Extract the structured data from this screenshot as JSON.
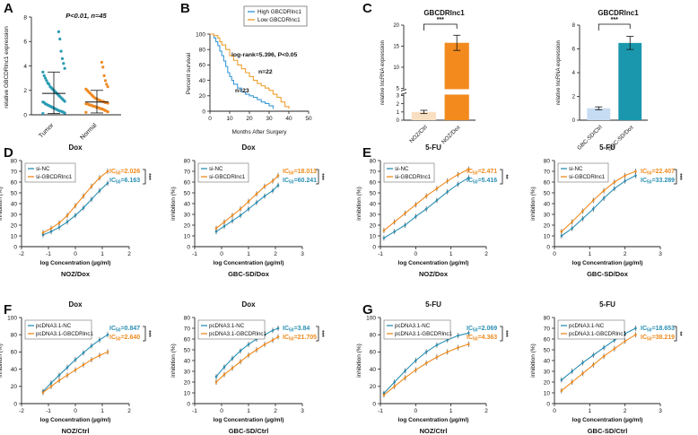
{
  "figure": {
    "panel_letters": [
      "A",
      "B",
      "C",
      "D",
      "E",
      "F",
      "G"
    ],
    "colors": {
      "tumor": "#2a9bb3",
      "normal": "#f08a24",
      "km_high": "#3a9ad9",
      "km_low": "#f0a030",
      "bar_ctrl": "#f8dfc2",
      "bar_dox": "#f28a1e",
      "bar_ctrl2": "#c6dcf2",
      "bar_dox2": "#1a97ad",
      "teal": "#2a8fb3",
      "orange": "#ee8a1c",
      "axis": "#222222"
    }
  },
  "chart_data": [
    {
      "id": "A",
      "type": "scatter",
      "title": "P<0.01, n=45",
      "ylabel": "relative GBCDRlnc1 expression",
      "categories": [
        "Tumor",
        "Normal"
      ],
      "ylim": [
        0,
        8
      ],
      "yticks": [
        0,
        2,
        4,
        6,
        8
      ],
      "series": [
        {
          "name": "Tumor",
          "values": [
            0.1,
            0.15,
            0.2,
            0.25,
            0.3,
            0.3,
            0.35,
            0.4,
            0.45,
            0.5,
            0.55,
            0.6,
            0.65,
            0.7,
            0.75,
            0.8,
            0.85,
            0.9,
            1.0,
            1.05,
            1.1,
            1.2,
            1.3,
            1.4,
            1.5,
            1.6,
            1.7,
            1.8,
            1.9,
            2.0,
            2.1,
            2.2,
            2.3,
            2.5,
            2.6,
            2.8,
            3.0,
            3.2,
            3.5,
            3.8,
            4.2,
            4.6,
            5.2,
            6.2,
            6.8
          ],
          "mean": 1.75,
          "sd_low": 0.1,
          "sd_high": 3.5
        },
        {
          "name": "Normal",
          "values": [
            0.2,
            0.25,
            0.3,
            0.35,
            0.4,
            0.45,
            0.5,
            0.5,
            0.55,
            0.6,
            0.6,
            0.65,
            0.7,
            0.7,
            0.75,
            0.8,
            0.8,
            0.85,
            0.9,
            0.9,
            0.95,
            1.0,
            1.0,
            1.05,
            1.1,
            1.1,
            1.15,
            1.2,
            1.25,
            1.3,
            1.35,
            1.4,
            1.5,
            1.6,
            1.7,
            1.8,
            1.9,
            2.0,
            2.1,
            2.3,
            2.5,
            2.8,
            3.2,
            3.9,
            4.3
          ],
          "mean": 1.05,
          "sd_low": 0.15,
          "sd_high": 2.0
        }
      ]
    },
    {
      "id": "B",
      "type": "line",
      "xlabel": "Months After Surgery",
      "ylabel": "Percent survival",
      "xlim": [
        0,
        50
      ],
      "ylim": [
        0,
        100
      ],
      "xticks": [
        0,
        10,
        20,
        30,
        40,
        50
      ],
      "yticks": [
        0,
        20,
        40,
        60,
        80,
        100
      ],
      "annotation": "log-rank=5.396, P<0.05",
      "n_labels": [
        "n=22",
        "n=23"
      ],
      "series": [
        {
          "name": "High GBCDRlnc1",
          "x": [
            0,
            2,
            3,
            4,
            5,
            6,
            7,
            8,
            9,
            10,
            11,
            12,
            14,
            16,
            18,
            20,
            22,
            24,
            26,
            28,
            30,
            32
          ],
          "y": [
            100,
            95,
            90,
            85,
            78,
            72,
            65,
            58,
            50,
            45,
            40,
            35,
            30,
            25,
            22,
            20,
            18,
            15,
            12,
            10,
            7,
            3
          ]
        },
        {
          "name": "Low GBCDRlnc1",
          "x": [
            0,
            2,
            4,
            5,
            6,
            8,
            10,
            12,
            14,
            16,
            18,
            20,
            22,
            24,
            26,
            28,
            30,
            32,
            34,
            36,
            38,
            40
          ],
          "y": [
            100,
            98,
            95,
            90,
            86,
            80,
            72,
            66,
            60,
            55,
            50,
            45,
            40,
            36,
            33,
            30,
            27,
            22,
            18,
            12,
            6,
            3
          ]
        }
      ]
    },
    {
      "id": "C1",
      "type": "bar",
      "title": "GBCDRlnc1",
      "ylabel": "relative lncRNA expression",
      "categories": [
        "NOZ/Ctrl",
        "NOZ/Dox"
      ],
      "values": [
        1.0,
        15.8
      ],
      "errors": [
        0.2,
        1.8
      ],
      "ylim": [
        0,
        20
      ],
      "yticks": [
        0,
        1,
        2,
        3,
        5,
        10,
        15,
        20
      ],
      "axis_break": [
        3.3,
        4.8
      ],
      "significance": "***"
    },
    {
      "id": "C2",
      "type": "bar",
      "title": "GBCDRlnc1",
      "ylabel": "relative lncRNA expression",
      "categories": [
        "GBC-SD/Ctrl",
        "GBC-SD/Dox"
      ],
      "values": [
        1.0,
        6.5
      ],
      "errors": [
        0.12,
        0.55
      ],
      "ylim": [
        0,
        8
      ],
      "yticks": [
        0,
        2,
        4,
        6,
        8
      ],
      "significance": "***"
    },
    {
      "id": "D1",
      "type": "line",
      "title": "Dox",
      "cell_line": "NOZ/Dox",
      "xlabel": "log Concentration (µg/ml)",
      "ylabel": "inhibition (%)",
      "xlim": [
        -2,
        2
      ],
      "ylim": [
        0,
        80
      ],
      "xticks": [
        -2,
        -1,
        0,
        1,
        2
      ],
      "yticks": [
        0,
        10,
        20,
        30,
        40,
        50,
        60,
        70,
        80
      ],
      "significance": "***",
      "series": [
        {
          "name": "si-NC",
          "color_key": "teal",
          "ic50": "IC50=6.163",
          "x": [
            -1.2,
            -0.9,
            -0.6,
            -0.3,
            0,
            0.3,
            0.6,
            0.9,
            1.2
          ],
          "y": [
            11,
            14,
            18,
            23,
            29,
            36,
            44,
            52,
            59
          ]
        },
        {
          "name": "si-GBCDRlnc1",
          "color_key": "orange",
          "ic50": "IC50=2.026",
          "x": [
            -1.2,
            -0.9,
            -0.6,
            -0.3,
            0,
            0.3,
            0.6,
            0.9,
            1.2
          ],
          "y": [
            13,
            17,
            22,
            29,
            38,
            47,
            56,
            64,
            70
          ]
        }
      ]
    },
    {
      "id": "D2",
      "type": "line",
      "title": "Dox",
      "cell_line": "GBC-SD/Dox",
      "xlabel": "log Concentration (µg/ml)",
      "ylabel": "inhibition (%)",
      "xlim": [
        -1,
        3
      ],
      "ylim": [
        0,
        80
      ],
      "xticks": [
        -1,
        0,
        1,
        2,
        3
      ],
      "yticks": [
        0,
        10,
        20,
        30,
        40,
        50,
        60,
        70,
        80
      ],
      "significance": "***",
      "series": [
        {
          "name": "si-NC",
          "color_key": "teal",
          "ic50": "IC50=60.241",
          "x": [
            -0.2,
            0.1,
            0.4,
            0.7,
            1.0,
            1.3,
            1.6,
            1.9,
            2.1
          ],
          "y": [
            14,
            19,
            24,
            29,
            35,
            41,
            47,
            52,
            57
          ]
        },
        {
          "name": "si-GBCDRlnc1",
          "color_key": "orange",
          "ic50": "IC50=18.013",
          "x": [
            -0.2,
            0.1,
            0.4,
            0.7,
            1.0,
            1.3,
            1.6,
            1.9,
            2.1
          ],
          "y": [
            17,
            23,
            29,
            35,
            42,
            49,
            56,
            61,
            66
          ]
        }
      ]
    },
    {
      "id": "E1",
      "type": "line",
      "title": "5-FU",
      "cell_line": "NOZ/Dox",
      "xlabel": "log Concentration (µg/ml)",
      "ylabel": "inhibition (%)",
      "xlim": [
        -1,
        2
      ],
      "ylim": [
        0,
        80
      ],
      "xticks": [
        -1,
        0,
        1,
        2
      ],
      "yticks": [
        0,
        10,
        20,
        30,
        40,
        50,
        60,
        70,
        80
      ],
      "significance": "**",
      "series": [
        {
          "name": "si-NC",
          "color_key": "teal",
          "ic50": "IC50=5.416",
          "x": [
            -0.9,
            -0.6,
            -0.3,
            0,
            0.3,
            0.6,
            0.9,
            1.2,
            1.5
          ],
          "y": [
            8,
            14,
            20,
            28,
            35,
            43,
            51,
            58,
            64
          ]
        },
        {
          "name": "si-GBCDRlnc1",
          "color_key": "orange",
          "ic50": "IC50=2.471",
          "x": [
            -0.9,
            -0.6,
            -0.3,
            0,
            0.3,
            0.6,
            0.9,
            1.2,
            1.5
          ],
          "y": [
            15,
            23,
            31,
            39,
            47,
            54,
            61,
            67,
            72
          ]
        }
      ]
    },
    {
      "id": "E2",
      "type": "line",
      "title": "5-FU",
      "cell_line": "GBC-SD/Dox",
      "xlabel": "log Concentration (µg/ml)",
      "ylabel": "inhibition (%)",
      "xlim": [
        0,
        3
      ],
      "ylim": [
        0,
        80
      ],
      "xticks": [
        0,
        1,
        2,
        3
      ],
      "yticks": [
        0,
        10,
        20,
        30,
        40,
        50,
        60,
        70,
        80
      ],
      "significance": "***",
      "series": [
        {
          "name": "si-NC",
          "color_key": "teal",
          "ic50": "IC50=33.289",
          "x": [
            0.2,
            0.5,
            0.8,
            1.1,
            1.4,
            1.7,
            2.0,
            2.3
          ],
          "y": [
            10,
            17,
            26,
            35,
            45,
            54,
            61,
            66
          ]
        },
        {
          "name": "si-GBCDRlnc1",
          "color_key": "orange",
          "ic50": "IC50=22.407",
          "x": [
            0.2,
            0.5,
            0.8,
            1.1,
            1.4,
            1.7,
            2.0,
            2.3
          ],
          "y": [
            14,
            23,
            33,
            43,
            52,
            60,
            66,
            70
          ]
        }
      ]
    },
    {
      "id": "F1",
      "type": "line",
      "title": "Dox",
      "cell_line": "NOZ/Ctrl",
      "xlabel": "log Concentration (µg/ml)",
      "ylabel": "inhibition (%)",
      "xlim": [
        -2,
        2
      ],
      "ylim": [
        0,
        100
      ],
      "xticks": [
        -2,
        -1,
        0,
        1,
        2
      ],
      "yticks": [
        0,
        20,
        40,
        60,
        80,
        100
      ],
      "significance": "***",
      "series": [
        {
          "name": "pcDNA3.1-NC",
          "color_key": "teal",
          "ic50": "IC50=0.847",
          "x": [
            -1.2,
            -0.9,
            -0.6,
            -0.3,
            0,
            0.3,
            0.6,
            0.9,
            1.2
          ],
          "y": [
            14,
            24,
            33,
            42,
            51,
            59,
            67,
            74,
            80
          ]
        },
        {
          "name": "pcDNA3.1-GBCDRlnc1",
          "color_key": "orange",
          "ic50": "IC50=2.640",
          "x": [
            -1.2,
            -0.9,
            -0.6,
            -0.3,
            0,
            0.3,
            0.6,
            0.9,
            1.2
          ],
          "y": [
            13,
            20,
            27,
            33,
            39,
            45,
            51,
            56,
            60
          ]
        }
      ]
    },
    {
      "id": "F2",
      "type": "line",
      "title": "Dox",
      "cell_line": "GBC-SD/Ctrl",
      "xlabel": "log Concentration (µg/ml)",
      "ylabel": "inhibition (%)",
      "xlim": [
        -1,
        3
      ],
      "ylim": [
        0,
        80
      ],
      "xticks": [
        -1,
        0,
        1,
        2,
        3
      ],
      "yticks": [
        0,
        10,
        20,
        30,
        40,
        50,
        60,
        70,
        80
      ],
      "significance": "***",
      "series": [
        {
          "name": "pcDNA3.1-NC",
          "color_key": "teal",
          "ic50": "IC50=3.84",
          "x": [
            -0.2,
            0.1,
            0.4,
            0.7,
            1.0,
            1.3,
            1.6,
            1.9,
            2.1
          ],
          "y": [
            25,
            34,
            42,
            49,
            55,
            60,
            64,
            68,
            70
          ]
        },
        {
          "name": "pcDNA3.1-GBCDRlnc1",
          "color_key": "orange",
          "ic50": "IC50=21.705",
          "x": [
            -0.2,
            0.1,
            0.4,
            0.7,
            1.0,
            1.3,
            1.6,
            1.9,
            2.1
          ],
          "y": [
            20,
            27,
            33,
            39,
            45,
            50,
            55,
            59,
            62
          ]
        }
      ]
    },
    {
      "id": "G1",
      "type": "line",
      "title": "5-FU",
      "cell_line": "NOZ/Ctrl",
      "xlabel": "log Concentration (µg/ml)",
      "ylabel": "inhibition (%)",
      "xlim": [
        -1,
        2
      ],
      "ylim": [
        0,
        100
      ],
      "xticks": [
        -1,
        0,
        1,
        2
      ],
      "yticks": [
        0,
        20,
        40,
        60,
        80,
        100
      ],
      "significance": "***",
      "series": [
        {
          "name": "pcDNA3.1-NC",
          "color_key": "teal",
          "ic50": "IC50=2.069",
          "x": [
            -0.9,
            -0.6,
            -0.3,
            0,
            0.3,
            0.6,
            0.9,
            1.2,
            1.5
          ],
          "y": [
            12,
            25,
            38,
            50,
            60,
            68,
            74,
            79,
            82
          ]
        },
        {
          "name": "pcDNA3.1-GBCDRlnc1",
          "color_key": "orange",
          "ic50": "IC50=4.363",
          "x": [
            -0.9,
            -0.6,
            -0.3,
            0,
            0.3,
            0.6,
            0.9,
            1.2,
            1.5
          ],
          "y": [
            10,
            20,
            30,
            39,
            47,
            54,
            60,
            65,
            69
          ]
        }
      ]
    },
    {
      "id": "G2",
      "type": "line",
      "title": "5-FU",
      "cell_line": "GBC-SD/Ctrl",
      "xlabel": "log Concentration (µg/ml)",
      "ylabel": "inhibition (%)",
      "xlim": [
        0,
        3
      ],
      "ylim": [
        0,
        80
      ],
      "xticks": [
        0,
        1,
        2,
        3
      ],
      "yticks": [
        0,
        10,
        20,
        30,
        40,
        50,
        60,
        70,
        80
      ],
      "significance": "**",
      "series": [
        {
          "name": "pcDNA3.1-NC",
          "color_key": "teal",
          "ic50": "IC50=18.653",
          "x": [
            0.2,
            0.5,
            0.8,
            1.1,
            1.4,
            1.7,
            2.0,
            2.3
          ],
          "y": [
            22,
            30,
            38,
            45,
            52,
            59,
            65,
            70
          ]
        },
        {
          "name": "pcDNA3.1-GBCDRlnc1",
          "color_key": "orange",
          "ic50": "IC50=38.219",
          "x": [
            0.2,
            0.5,
            0.8,
            1.1,
            1.4,
            1.7,
            2.0,
            2.3
          ],
          "y": [
            12,
            20,
            28,
            36,
            44,
            51,
            58,
            64
          ]
        }
      ]
    }
  ]
}
